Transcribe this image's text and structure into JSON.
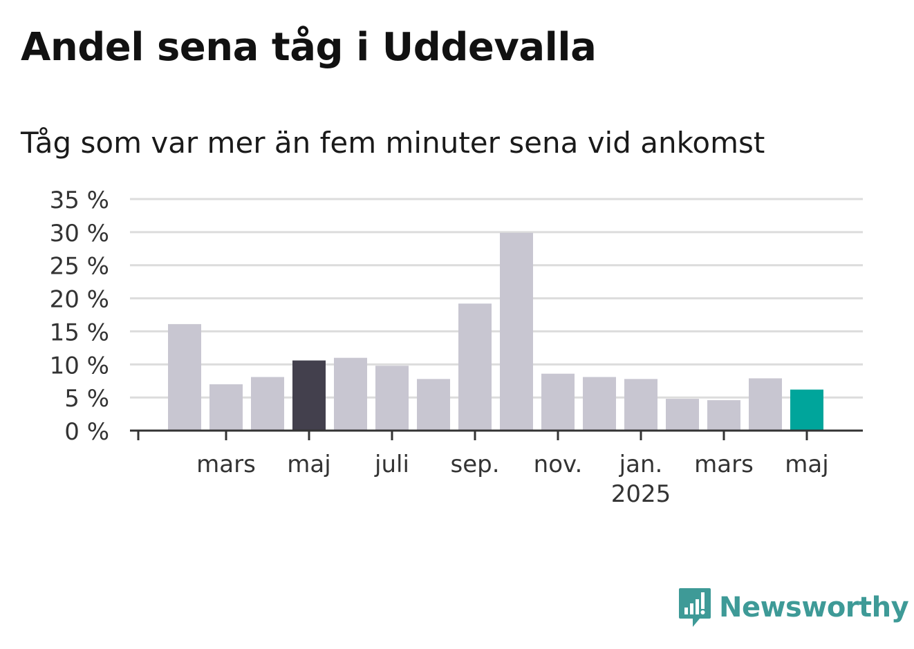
{
  "title": "Andel sena tåg i Uddevalla",
  "subtitle": "Tåg som var mer än fem minuter sena vid ankomst",
  "brand": {
    "name": "Newsworthy",
    "icon": "newsworthy-logo-icon",
    "color": "#3e9a97"
  },
  "colors": {
    "bar": "#c8c6d1",
    "highlight_prev": "#43404d",
    "highlight_current": "#00a59b",
    "grid": "#dcdcdc",
    "axis": "#333333"
  },
  "chart_data": {
    "type": "bar",
    "categories": [
      "2024-02",
      "2024-03",
      "2024-04",
      "2024-05",
      "2024-06",
      "2024-07",
      "2024-08",
      "2024-09",
      "2024-10",
      "2024-11",
      "2024-12",
      "2025-01",
      "2025-02",
      "2025-03",
      "2025-04",
      "2025-05"
    ],
    "values": [
      16.1,
      7.0,
      8.1,
      10.6,
      11.0,
      9.8,
      7.8,
      19.2,
      29.9,
      8.6,
      8.1,
      7.8,
      4.8,
      4.6,
      7.9,
      6.2
    ],
    "bar_colors": [
      "#c8c6d1",
      "#c8c6d1",
      "#c8c6d1",
      "#43404d",
      "#c8c6d1",
      "#c8c6d1",
      "#c8c6d1",
      "#c8c6d1",
      "#c8c6d1",
      "#c8c6d1",
      "#c8c6d1",
      "#c8c6d1",
      "#c8c6d1",
      "#c8c6d1",
      "#c8c6d1",
      "#00a59b"
    ],
    "ylim": [
      0,
      35
    ],
    "yticks": [
      0,
      5,
      10,
      15,
      20,
      25,
      30,
      35
    ],
    "ytick_labels": [
      "0 %",
      "5 %",
      "10 %",
      "15 %",
      "20 %",
      "25 %",
      "30 %",
      "35 %"
    ],
    "xtick_labels": [
      {
        "category": "2024-03",
        "lines": [
          "mars"
        ]
      },
      {
        "category": "2024-05",
        "lines": [
          "maj"
        ]
      },
      {
        "category": "2024-07",
        "lines": [
          "juli"
        ]
      },
      {
        "category": "2024-09",
        "lines": [
          "sep."
        ]
      },
      {
        "category": "2024-11",
        "lines": [
          "nov."
        ]
      },
      {
        "category": "2025-01",
        "lines": [
          "jan.",
          "2025"
        ]
      },
      {
        "category": "2025-03",
        "lines": [
          "mars"
        ]
      },
      {
        "category": "2025-05",
        "lines": [
          "maj"
        ]
      }
    ],
    "grid": true,
    "legend": "none",
    "xlabel": "",
    "ylabel": ""
  }
}
